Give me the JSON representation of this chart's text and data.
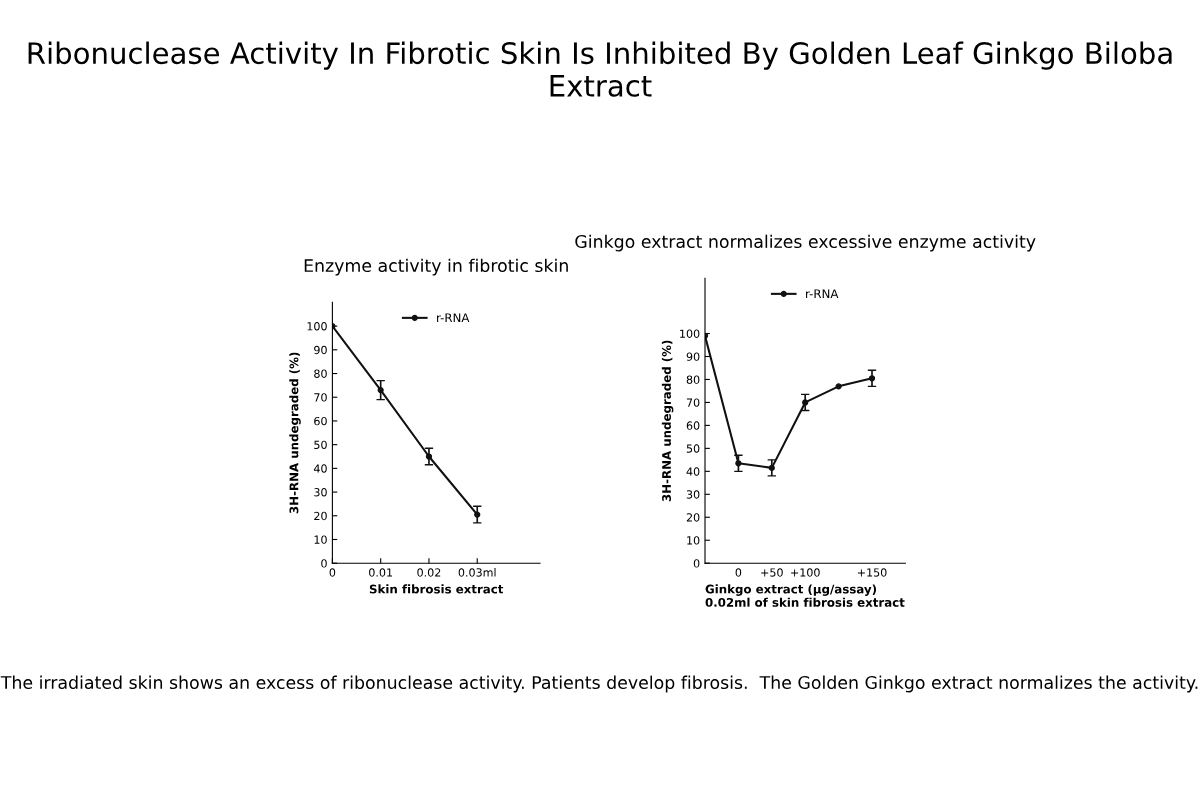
{
  "chart_data": [
    {
      "type": "line",
      "title": "Enzyme activity in fibrotic skin",
      "xlabel": "Skin fibrosis extract",
      "ylabel": "3H-RNA undegraded (%)",
      "annotations": [
        "Ribonuclease Activity In Fibrotic Skin Is Inhibited By Golden Leaf Ginkgo Biloba Extract",
        "The irradiated skin shows an excess of ribonuclease activity. Patients develop fibrosis.  The Golden Ginkgo extract normalizes the activity."
      ],
      "x": [
        0,
        0.01,
        0.02,
        0.03
      ],
      "series": [
        {
          "name": "r-RNA",
          "color": "#111111",
          "values": [
            100,
            73,
            45,
            20.5
          ],
          "errors": [
            null,
            4,
            3.5,
            3.5
          ]
        }
      ],
      "xlim": [
        0,
        0.043
      ],
      "xticks": [
        0,
        0.01,
        0.02,
        {
          "value": 0.03,
          "label": "0.03ml"
        }
      ],
      "ylim": [
        0,
        110
      ],
      "yticks": [
        0,
        10,
        20,
        30,
        40,
        50,
        60,
        70,
        80,
        90,
        100
      ],
      "legend": "top",
      "grid": false,
      "marker": "circle",
      "line_style": "solid"
    },
    {
      "type": "line",
      "title": "Ginkgo extract normalizes excessive enzyme activity",
      "xlabel": "Ginkgo extract (μg/assay)\n0.02ml of skin fibrosis extract",
      "ylabel": "3H-RNA undegraded (%)",
      "categories": [
        null,
        "0",
        "+50",
        "+100",
        null,
        "+150"
      ],
      "series": [
        {
          "name": "r-RNA",
          "color": "#111111",
          "values": [
            99,
            43.5,
            41.5,
            70,
            77,
            80.5
          ],
          "errors": [
            null,
            3.5,
            3.5,
            3.5,
            null,
            3.5
          ]
        }
      ],
      "ylim": [
        0,
        124
      ],
      "yticks": [
        0,
        10,
        20,
        30,
        40,
        50,
        60,
        70,
        80,
        90,
        100
      ],
      "legend": "top",
      "grid": false,
      "marker": "circle",
      "line_style": "solid"
    }
  ]
}
